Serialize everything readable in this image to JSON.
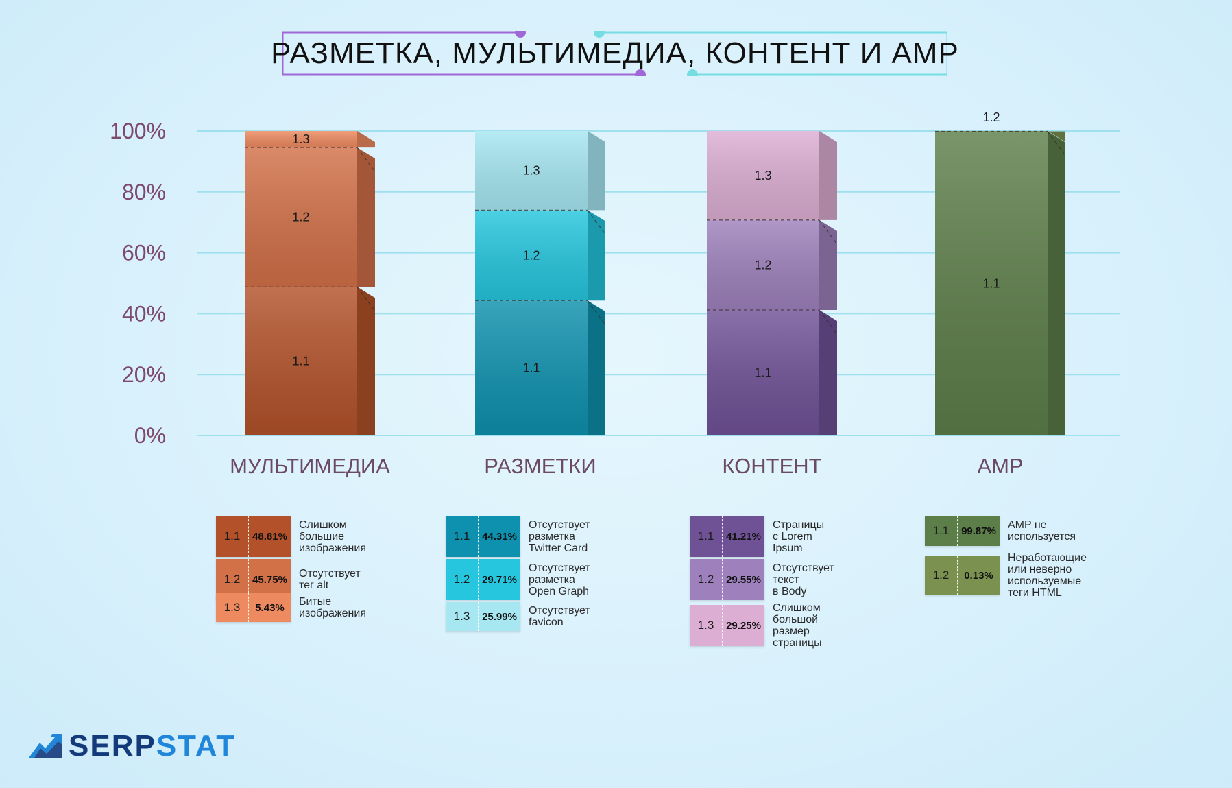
{
  "title": "РАЗМЕТКА, МУЛЬТИМЕДИА, КОНТЕНТ И AMP",
  "chart_data": {
    "type": "bar",
    "stacked": true,
    "ylim": [
      0,
      100
    ],
    "yticks": [
      "0%",
      "20%",
      "40%",
      "60%",
      "80%",
      "100%"
    ],
    "grid": true,
    "categories": [
      "МУЛЬТИМЕДИА",
      "РАЗМЕТКИ",
      "КОНТЕНТ",
      "AMP"
    ],
    "groups": [
      {
        "category": "МУЛЬТИМЕДИА",
        "segments": [
          {
            "code": "1.1",
            "value": 48.81,
            "label": "48.81%",
            "description": "Слишком большие\nизображения",
            "color": "#b3522a"
          },
          {
            "code": "1.2",
            "value": 45.75,
            "label": "45.75%",
            "description": "Отсутствует тег alt",
            "color": "#d27048"
          },
          {
            "code": "1.3",
            "value": 5.43,
            "label": "5.43%",
            "description": "Битые изображения",
            "color": "#ee8a5f"
          }
        ]
      },
      {
        "category": "РАЗМЕТКИ",
        "segments": [
          {
            "code": "1.1",
            "value": 44.31,
            "label": "44.31%",
            "description": "Отсутствует разметка\nTwitter Card",
            "color": "#0e91ae"
          },
          {
            "code": "1.2",
            "value": 29.71,
            "label": "29.71%",
            "description": "Отсутствует разметка\nOpen Graph",
            "color": "#25c6de"
          },
          {
            "code": "1.3",
            "value": 25.99,
            "label": "25.99%",
            "description": "Отсутствует favicon",
            "color": "#a6e7f2"
          }
        ]
      },
      {
        "category": "КОНТЕНТ",
        "segments": [
          {
            "code": "1.1",
            "value": 41.21,
            "label": "41.21%",
            "description": "Страницы с Lorem\nIpsum",
            "color": "#6f5196"
          },
          {
            "code": "1.2",
            "value": 29.55,
            "label": "29.55%",
            "description": "Отсутствует текст\nв Body",
            "color": "#9e81bc"
          },
          {
            "code": "1.3",
            "value": 29.25,
            "label": "29.25%",
            "description": "Слишком большой\nразмер страницы",
            "color": "#dcaed3"
          }
        ]
      },
      {
        "category": "AMP",
        "segments": [
          {
            "code": "1.1",
            "value": 99.87,
            "label": "99.87%",
            "description": "AMP не используется",
            "color": "#5c7e49"
          },
          {
            "code": "1.2",
            "value": 0.13,
            "label": "0.13%",
            "description": "Неработающие или неверно\nиспользуемые теги HTML",
            "color": "#7b9150"
          }
        ]
      }
    ]
  },
  "logo": {
    "prefix": "SERP",
    "suffix": "STAT",
    "color": "#133a7a",
    "accent": "#1f86d9"
  }
}
